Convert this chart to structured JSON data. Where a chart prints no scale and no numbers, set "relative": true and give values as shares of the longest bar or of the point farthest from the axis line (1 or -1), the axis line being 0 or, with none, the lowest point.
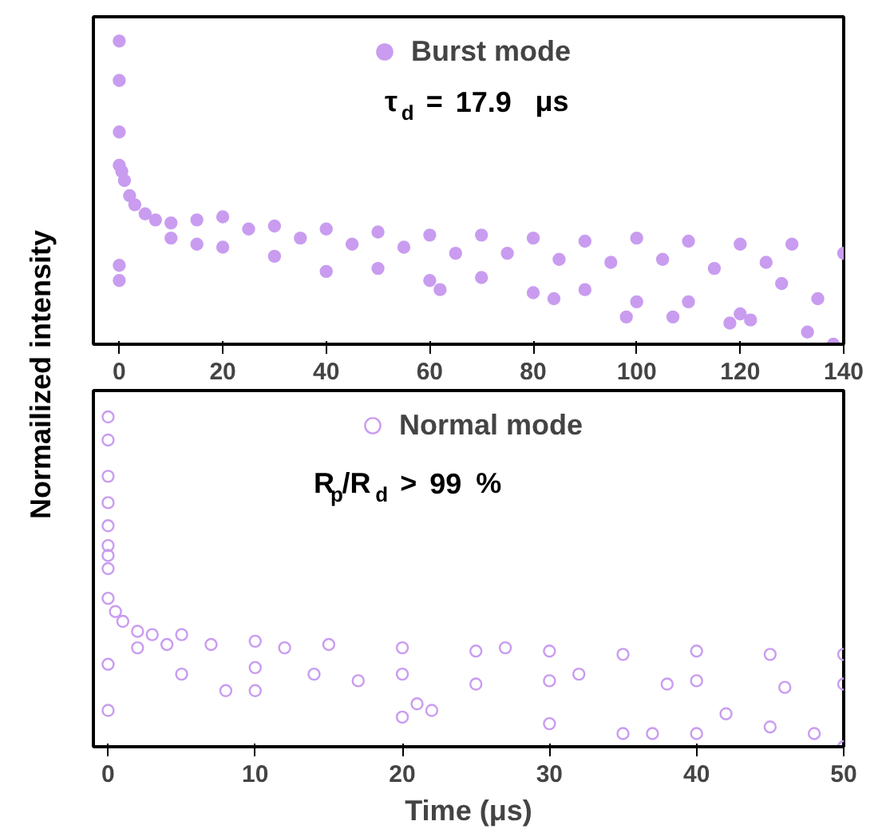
{
  "chart_data": [
    {
      "type": "scatter",
      "relative": true,
      "ylabel": "Normailized intensity",
      "xlim": [
        -5,
        140
      ],
      "xticks": [
        0,
        20,
        40,
        60,
        80,
        100,
        120,
        140
      ],
      "tick_labels": "x",
      "marker": "circle",
      "legend": "top",
      "annotations": [
        "τ$_{d}$ = 17.9 μs"
      ],
      "series": [
        {
          "name": "Burst mode",
          "color": "#c99cf0",
          "x": [
            0,
            0,
            0,
            0,
            0,
            0,
            0.5,
            1,
            2,
            3,
            5,
            7,
            10,
            10,
            15,
            15,
            20,
            20,
            25,
            30,
            30,
            35,
            40,
            40,
            45,
            50,
            50,
            55,
            60,
            60,
            62,
            65,
            70,
            70,
            75,
            80,
            80,
            84,
            85,
            90,
            90,
            95,
            98,
            100,
            100,
            105,
            107,
            110,
            110,
            115,
            118,
            120,
            120,
            122,
            125,
            128,
            130,
            133,
            135,
            138,
            140
          ],
          "values": [
            1.0,
            0.87,
            0.7,
            0.59,
            0.26,
            0.21,
            0.57,
            0.54,
            0.49,
            0.46,
            0.43,
            0.41,
            0.4,
            0.35,
            0.41,
            0.33,
            0.42,
            0.32,
            0.38,
            0.39,
            0.29,
            0.35,
            0.38,
            0.24,
            0.33,
            0.37,
            0.25,
            0.32,
            0.36,
            0.21,
            0.18,
            0.3,
            0.36,
            0.22,
            0.3,
            0.35,
            0.17,
            0.15,
            0.28,
            0.34,
            0.18,
            0.27,
            0.09,
            0.35,
            0.14,
            0.28,
            0.09,
            0.34,
            0.14,
            0.25,
            0.07,
            0.33,
            0.1,
            0.08,
            0.27,
            0.2,
            0.33,
            0.04,
            0.15,
            0.0,
            0.3
          ]
        }
      ]
    },
    {
      "type": "scatter",
      "relative": true,
      "xlabel": "Time (μs)",
      "xlim": [
        -1,
        50
      ],
      "xticks": [
        0,
        10,
        20,
        30,
        40,
        50
      ],
      "tick_labels": "x",
      "marker": "circle",
      "legend": "top",
      "annotations": [
        "R$_{p}$/R$_{d}$ > 99 %"
      ],
      "series": [
        {
          "name": "Normal mode",
          "color": "#c99cf0",
          "x": [
            0,
            0,
            0,
            0,
            0,
            0,
            0,
            0,
            0,
            0,
            0,
            0.5,
            1,
            2,
            2,
            3,
            4,
            5,
            5,
            7,
            8,
            10,
            10,
            10,
            12,
            14,
            15,
            17,
            20,
            20,
            20,
            21,
            22,
            25,
            25,
            27,
            30,
            30,
            30,
            32,
            35,
            35,
            37,
            38,
            40,
            40,
            40,
            42,
            45,
            45,
            46,
            48,
            50,
            50,
            50
          ],
          "values": [
            1.0,
            0.93,
            0.82,
            0.74,
            0.67,
            0.61,
            0.58,
            0.54,
            0.45,
            0.25,
            0.11,
            0.41,
            0.38,
            0.35,
            0.3,
            0.34,
            0.31,
            0.34,
            0.22,
            0.31,
            0.17,
            0.32,
            0.24,
            0.17,
            0.3,
            0.22,
            0.31,
            0.2,
            0.3,
            0.22,
            0.09,
            0.13,
            0.11,
            0.29,
            0.19,
            0.3,
            0.29,
            0.2,
            0.07,
            0.22,
            0.28,
            0.04,
            0.04,
            0.19,
            0.29,
            0.2,
            0.04,
            0.1,
            0.28,
            0.06,
            0.18,
            0.04,
            0.28,
            0.19,
            0.0
          ]
        }
      ]
    }
  ]
}
